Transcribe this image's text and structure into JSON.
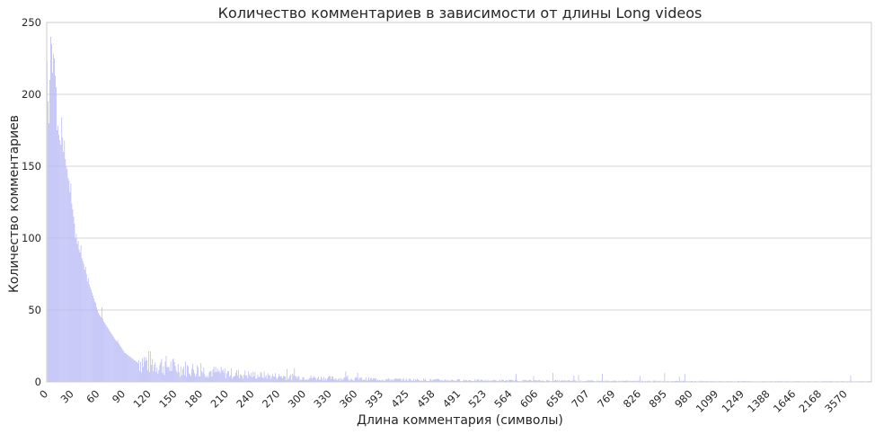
{
  "chart_data": {
    "type": "bar",
    "title": "Количество комментариев в зависимости от длины Long videos",
    "xlabel": "Длина комментария (символы)",
    "ylabel": "Количество комментариев",
    "ylim": [
      0,
      250
    ],
    "yticks": [
      0,
      50,
      100,
      150,
      200,
      250
    ],
    "xticks": [
      "0",
      "30",
      "60",
      "90",
      "120",
      "150",
      "180",
      "210",
      "240",
      "270",
      "300",
      "330",
      "360",
      "393",
      "425",
      "458",
      "491",
      "523",
      "564",
      "606",
      "658",
      "707",
      "769",
      "826",
      "895",
      "980",
      "1099",
      "1249",
      "1388",
      "1646",
      "2168",
      "3570"
    ],
    "grid": true,
    "bar_color": "#b9b9f5",
    "categories_count": 900,
    "values_head": [
      223,
      195,
      180,
      210,
      240,
      235,
      215,
      228,
      225,
      213,
      205,
      175,
      178,
      172,
      168,
      165,
      184,
      170,
      160,
      168,
      155,
      150,
      148,
      142,
      140,
      132,
      138,
      124,
      120,
      115,
      110,
      100,
      103,
      96,
      98,
      92,
      90,
      95,
      86,
      84,
      82,
      78,
      80,
      75,
      70,
      72,
      68,
      66,
      64,
      62,
      60,
      58,
      56,
      55,
      52,
      50,
      48,
      47,
      46,
      45,
      52,
      44,
      42,
      41,
      40,
      39,
      38,
      37,
      36,
      35,
      34,
      33,
      32,
      31,
      30,
      29,
      28,
      29,
      27,
      26,
      25,
      24,
      23,
      22,
      21,
      20,
      20,
      19,
      19,
      18,
      18,
      17,
      17,
      16,
      16,
      15,
      15,
      14,
      14,
      13
    ]
  }
}
